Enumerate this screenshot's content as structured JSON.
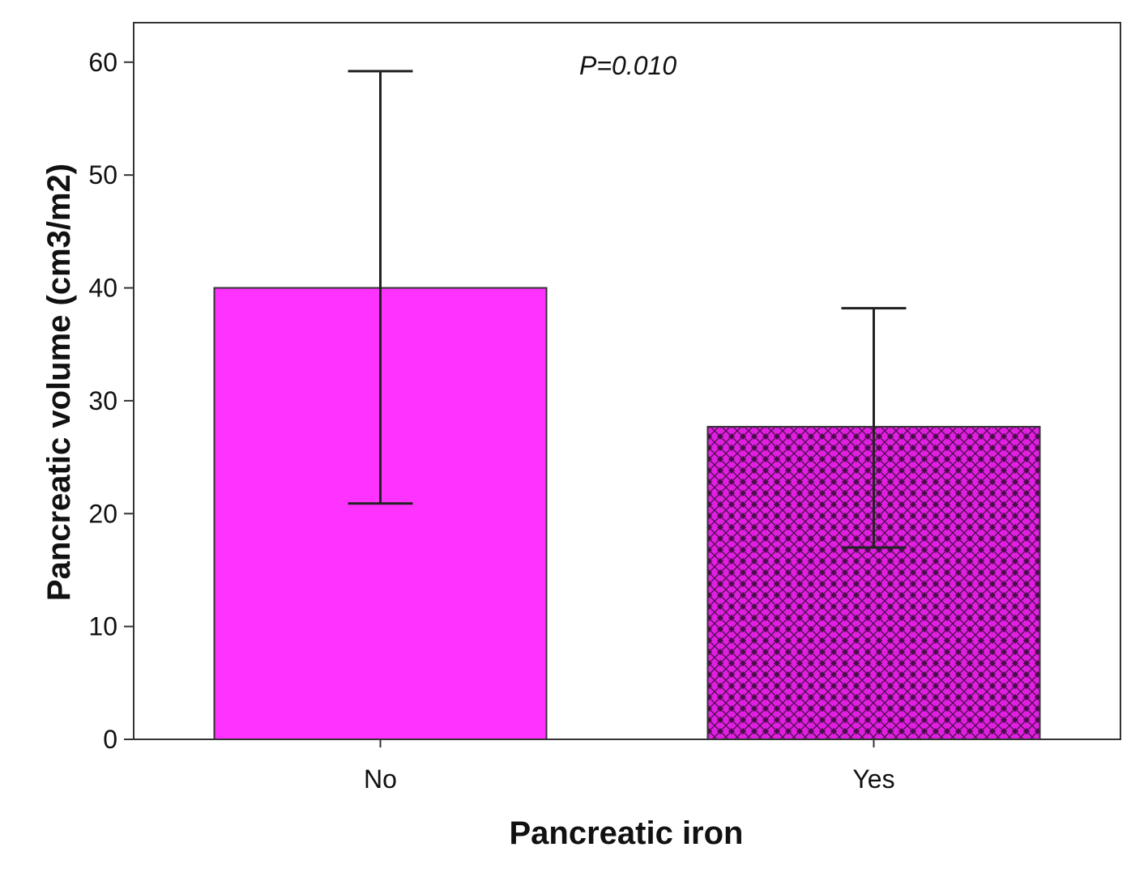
{
  "chart_data": {
    "type": "bar",
    "categories": [
      "No",
      "Yes"
    ],
    "values": [
      40.0,
      27.7
    ],
    "error_bars": [
      {
        "low": 20.9,
        "high": 59.2
      },
      {
        "low": 17.0,
        "high": 38.2
      }
    ],
    "xlabel": "Pancreatic iron",
    "ylabel": "Pancreatic volume (cm3/m2)",
    "ylim": [
      0,
      63.5
    ],
    "yticks": [
      0,
      10,
      20,
      30,
      40,
      50,
      60
    ],
    "annotation": "P=0.010",
    "grid": false,
    "legend": "none",
    "colors": {
      "bar_fill": "#ff33ff",
      "pattern_fill": "#e01fe0",
      "pattern_mark": "#4a0d4a",
      "axis": "#333333",
      "error_bar": "#222222"
    },
    "fills": [
      "solid",
      "cross-hatch"
    ]
  }
}
